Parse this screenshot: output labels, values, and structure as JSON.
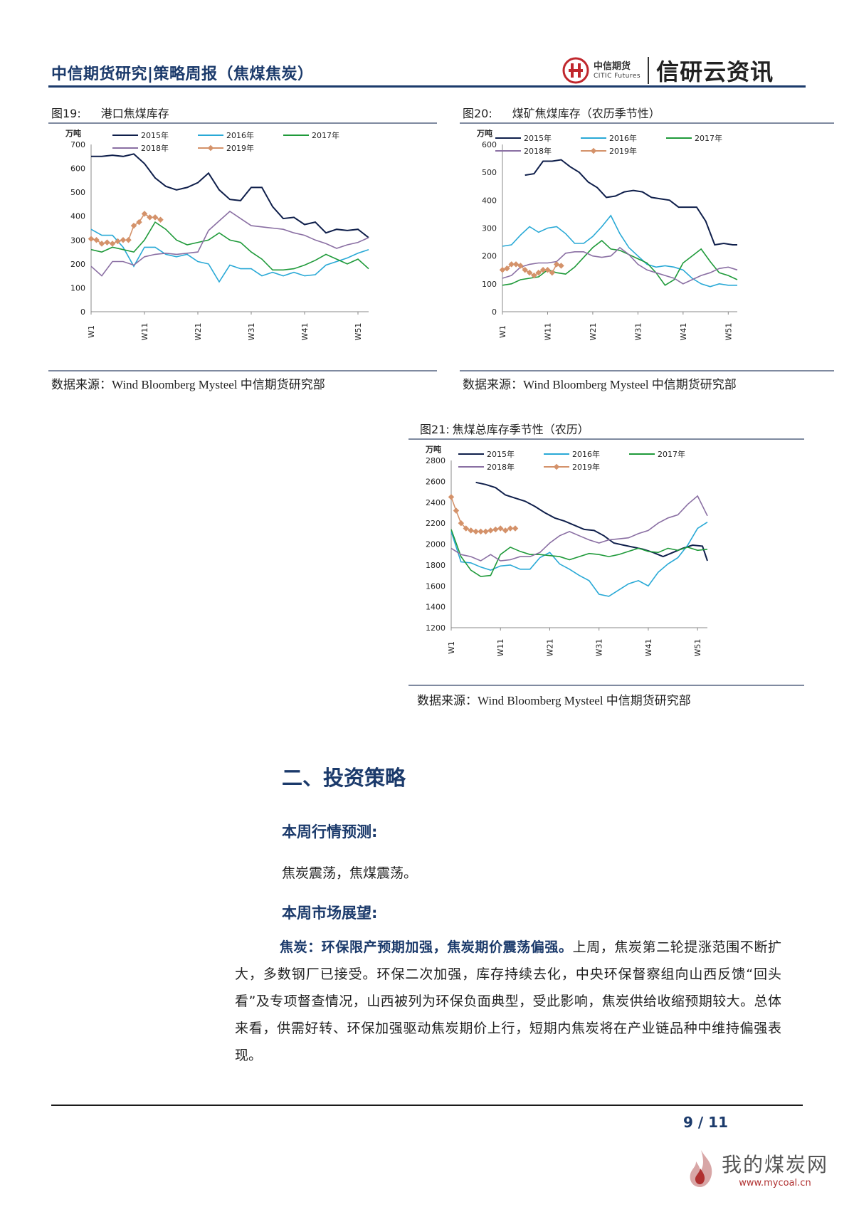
{
  "header": {
    "title": "中信期货研究|策略周报（焦煤焦炭）",
    "logo_cn": "中信期货",
    "logo_en": "CITIC Futures",
    "brand": "信研云资讯"
  },
  "figures": [
    {
      "num": "图19:",
      "title": "港口焦煤库存",
      "source": "数据来源：Wind Bloomberg Mysteel 中信期货研究部"
    },
    {
      "num": "图20:",
      "title": "煤矿焦煤库存（农历季节性）",
      "source": "数据来源：Wind Bloomberg Mysteel 中信期货研究部"
    },
    {
      "num": "图21:",
      "title": "焦煤总库存季节性（农历）",
      "source": "数据来源：Wind Bloomberg Mysteel 中信期货研究部"
    }
  ],
  "section": {
    "title": "二、投资策略",
    "forecast_heading": "本周行情预测:",
    "forecast_text": "焦炭震荡，焦煤震荡。",
    "outlook_heading": "本周市场展望:",
    "para_lead": "焦炭：环保限产预期加强，焦炭期价震荡偏强。",
    "para_body": "上周，焦炭第二轮提涨范围不断扩大，多数钢厂已接受。环保二次加强，库存持续去化，中央环保督察组向山西反馈“回头看”及专项督查情况，山西被列为环保负面典型，受此影响，焦炭供给收缩预期较大。总体来看，供需好转、环保加强驱动焦炭期价上行，短期内焦炭将在产业链品种中维持偏强表现。"
  },
  "footer": {
    "page": "9 / 11"
  },
  "watermark": {
    "text": "我的煤炭网",
    "url": "www.mycoal.cn"
  },
  "series_colors": {
    "2015年": "#0f1f4b",
    "2016年": "#29a9d6",
    "2017年": "#1f9a3a",
    "2018年": "#8a6fa3",
    "2019年": "#d4926a"
  },
  "chart_data": [
    {
      "type": "line",
      "title": "港口焦煤库存",
      "ylabel": "万吨",
      "ylim": [
        0,
        700
      ],
      "yticks": [
        0,
        100,
        200,
        300,
        400,
        500,
        600,
        700
      ],
      "xticks": [
        "W1",
        "W11",
        "W21",
        "W31",
        "W41",
        "W51"
      ],
      "x_weeks": [
        1,
        53
      ],
      "series": [
        {
          "name": "2015年",
          "x": [
            1,
            3,
            5,
            7,
            9,
            11,
            13,
            15,
            17,
            19,
            21,
            23,
            25,
            27,
            29,
            31,
            33,
            35,
            37,
            39,
            41,
            43,
            45,
            47,
            49,
            51,
            53
          ],
          "values": [
            650,
            650,
            655,
            650,
            660,
            620,
            560,
            525,
            510,
            520,
            540,
            580,
            510,
            470,
            465,
            520,
            520,
            440,
            390,
            395,
            365,
            375,
            330,
            345,
            340,
            345,
            310
          ]
        },
        {
          "name": "2016年",
          "x": [
            1,
            3,
            5,
            7,
            9,
            11,
            13,
            15,
            17,
            19,
            21,
            23,
            25,
            27,
            29,
            31,
            33,
            35,
            37,
            39,
            41,
            43,
            45,
            47,
            49,
            51,
            53
          ],
          "values": [
            345,
            320,
            320,
            270,
            190,
            270,
            270,
            240,
            230,
            240,
            210,
            200,
            125,
            195,
            180,
            180,
            150,
            165,
            150,
            165,
            150,
            155,
            195,
            210,
            225,
            245,
            260
          ]
        },
        {
          "name": "2017年",
          "x": [
            1,
            3,
            5,
            7,
            9,
            11,
            13,
            15,
            17,
            19,
            21,
            23,
            25,
            27,
            29,
            31,
            33,
            35,
            37,
            39,
            41,
            43,
            45,
            47,
            49,
            51,
            53
          ],
          "values": [
            260,
            250,
            270,
            260,
            250,
            300,
            375,
            345,
            300,
            280,
            290,
            300,
            330,
            300,
            290,
            250,
            220,
            175,
            175,
            180,
            195,
            215,
            240,
            220,
            200,
            220,
            180
          ]
        },
        {
          "name": "2018年",
          "x": [
            1,
            3,
            5,
            7,
            9,
            11,
            13,
            15,
            17,
            19,
            21,
            23,
            25,
            27,
            29,
            31,
            33,
            35,
            37,
            39,
            41,
            43,
            45,
            47,
            49,
            51,
            53
          ],
          "values": [
            190,
            150,
            210,
            210,
            195,
            230,
            240,
            245,
            240,
            245,
            250,
            340,
            380,
            420,
            390,
            360,
            355,
            350,
            345,
            330,
            320,
            300,
            285,
            265,
            280,
            290,
            310
          ]
        },
        {
          "name": "2019年",
          "x": [
            1,
            2,
            3,
            4,
            5,
            6,
            7,
            8,
            9,
            10,
            11,
            12,
            13,
            14
          ],
          "values": [
            305,
            300,
            285,
            290,
            285,
            295,
            300,
            300,
            360,
            375,
            410,
            395,
            395,
            385
          ]
        }
      ]
    },
    {
      "type": "line",
      "title": "煤矿焦煤库存（农历季节性）",
      "ylabel": "万吨",
      "ylim": [
        0,
        600
      ],
      "yticks": [
        0,
        100,
        200,
        300,
        400,
        500,
        600
      ],
      "xticks": [
        "W1",
        "W11",
        "W21",
        "W31",
        "W41",
        "W51"
      ],
      "x_weeks": [
        1,
        53
      ],
      "series": [
        {
          "name": "2015年",
          "x": [
            6,
            8,
            10,
            12,
            14,
            16,
            18,
            20,
            22,
            24,
            26,
            28,
            30,
            32,
            34,
            36,
            38,
            40,
            42,
            44,
            46,
            48,
            50,
            52,
            53
          ],
          "values": [
            490,
            495,
            540,
            540,
            545,
            520,
            500,
            465,
            445,
            410,
            415,
            430,
            435,
            430,
            410,
            405,
            400,
            375,
            375,
            375,
            325,
            240,
            245,
            240,
            240
          ]
        },
        {
          "name": "2016年",
          "x": [
            1,
            3,
            5,
            7,
            9,
            11,
            13,
            15,
            17,
            19,
            21,
            23,
            25,
            27,
            29,
            31,
            33,
            35,
            37,
            39,
            41,
            43,
            45,
            47,
            49,
            51,
            53
          ],
          "values": [
            235,
            240,
            275,
            305,
            285,
            300,
            305,
            280,
            245,
            245,
            270,
            305,
            345,
            280,
            230,
            200,
            170,
            160,
            165,
            160,
            150,
            120,
            100,
            90,
            100,
            95,
            95
          ]
        },
        {
          "name": "2017年",
          "x": [
            1,
            3,
            5,
            7,
            9,
            11,
            13,
            15,
            17,
            19,
            21,
            23,
            25,
            27,
            29,
            31,
            33,
            35,
            37,
            39,
            41,
            43,
            45,
            47,
            49,
            51,
            53
          ],
          "values": [
            95,
            100,
            115,
            120,
            125,
            150,
            140,
            135,
            160,
            195,
            230,
            255,
            225,
            220,
            205,
            190,
            175,
            140,
            95,
            115,
            175,
            200,
            225,
            180,
            140,
            130,
            115
          ]
        },
        {
          "name": "2018年",
          "x": [
            1,
            3,
            5,
            7,
            9,
            11,
            13,
            15,
            17,
            19,
            21,
            23,
            25,
            27,
            29,
            31,
            33,
            35,
            37,
            39,
            41,
            43,
            45,
            47,
            49,
            51,
            53
          ],
          "values": [
            120,
            130,
            160,
            170,
            175,
            175,
            180,
            210,
            215,
            215,
            200,
            195,
            200,
            230,
            205,
            170,
            150,
            140,
            130,
            120,
            100,
            115,
            130,
            140,
            155,
            160,
            150
          ]
        },
        {
          "name": "2019年",
          "x": [
            1,
            2,
            3,
            4,
            5,
            6,
            7,
            8,
            9,
            10,
            11,
            12,
            13,
            14
          ],
          "values": [
            150,
            155,
            170,
            170,
            165,
            150,
            140,
            130,
            140,
            150,
            150,
            140,
            170,
            165
          ]
        }
      ]
    },
    {
      "type": "line",
      "title": "焦煤总库存季节性（农历）",
      "ylabel": "万吨",
      "ylim": [
        1200,
        2800
      ],
      "yticks": [
        1200,
        1400,
        1600,
        1800,
        2000,
        2200,
        2400,
        2600,
        2800
      ],
      "xticks": [
        "W1",
        "W11",
        "W21",
        "W31",
        "W41",
        "W51"
      ],
      "x_weeks": [
        1,
        53
      ],
      "series": [
        {
          "name": "2015年",
          "x": [
            6,
            8,
            10,
            12,
            14,
            16,
            18,
            20,
            22,
            24,
            26,
            28,
            30,
            32,
            34,
            36,
            38,
            40,
            42,
            44,
            46,
            48,
            50,
            52,
            53
          ],
          "values": [
            2590,
            2570,
            2540,
            2470,
            2440,
            2410,
            2360,
            2300,
            2250,
            2220,
            2180,
            2140,
            2130,
            2080,
            2010,
            1990,
            1970,
            1950,
            1920,
            1880,
            1920,
            1960,
            1990,
            1980,
            1840
          ]
        },
        {
          "name": "2016年",
          "x": [
            1,
            3,
            5,
            7,
            9,
            11,
            13,
            15,
            17,
            19,
            21,
            23,
            25,
            27,
            29,
            31,
            33,
            35,
            37,
            39,
            41,
            43,
            45,
            47,
            49,
            51,
            53
          ],
          "values": [
            2120,
            1830,
            1820,
            1780,
            1750,
            1790,
            1800,
            1760,
            1760,
            1870,
            1920,
            1810,
            1760,
            1700,
            1650,
            1520,
            1500,
            1560,
            1620,
            1650,
            1600,
            1730,
            1810,
            1870,
            1990,
            2150,
            2210
          ]
        },
        {
          "name": "2017年",
          "x": [
            1,
            3,
            5,
            7,
            9,
            11,
            13,
            15,
            17,
            19,
            21,
            23,
            25,
            27,
            29,
            31,
            33,
            35,
            37,
            39,
            41,
            43,
            45,
            47,
            49,
            51,
            53
          ],
          "values": [
            2140,
            1880,
            1750,
            1690,
            1700,
            1900,
            1970,
            1930,
            1900,
            1900,
            1890,
            1880,
            1850,
            1880,
            1910,
            1900,
            1880,
            1900,
            1930,
            1960,
            1930,
            1920,
            1960,
            1940,
            1970,
            1940,
            1950
          ]
        },
        {
          "name": "2018年",
          "x": [
            1,
            3,
            5,
            7,
            9,
            11,
            13,
            15,
            17,
            19,
            21,
            23,
            25,
            27,
            29,
            31,
            33,
            35,
            37,
            39,
            41,
            43,
            45,
            47,
            49,
            51,
            53
          ],
          "values": [
            1960,
            1900,
            1880,
            1840,
            1900,
            1840,
            1850,
            1880,
            1880,
            1920,
            2010,
            2080,
            2120,
            2080,
            2040,
            2010,
            2040,
            2050,
            2060,
            2100,
            2130,
            2200,
            2250,
            2280,
            2380,
            2460,
            2270
          ]
        },
        {
          "name": "2019年",
          "x": [
            1,
            2,
            3,
            4,
            5,
            6,
            7,
            8,
            9,
            10,
            11,
            12,
            13,
            14
          ],
          "values": [
            2450,
            2320,
            2200,
            2150,
            2130,
            2120,
            2120,
            2120,
            2130,
            2140,
            2150,
            2130,
            2150,
            2150
          ]
        }
      ]
    }
  ]
}
